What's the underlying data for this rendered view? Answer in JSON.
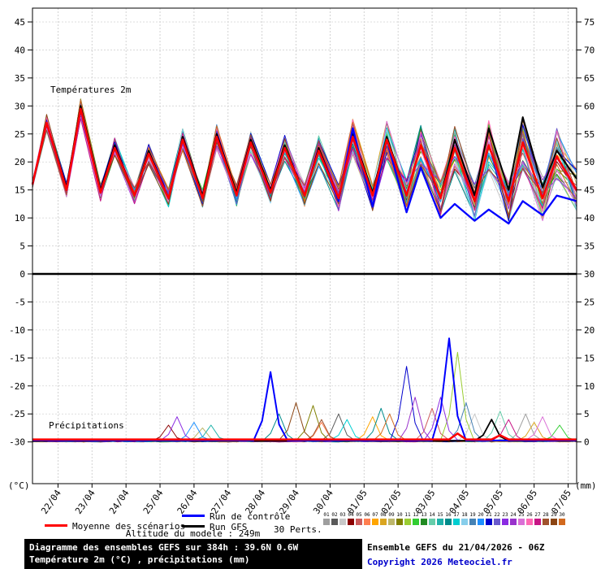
{
  "footer": {
    "altitude": "Altitude du modele : 249m",
    "title_line1": "Diagramme des ensembles GEFS sur 384h : 39.6N 0.6W",
    "title_line2": "Température 2m (°C) , précipitations (mm)",
    "run_info": "Ensemble GEFS du 21/04/2026 - 06Z",
    "copyright": "Copyright 2026 Meteociel.fr"
  },
  "legend": {
    "mean_label": "Moyenne des scénarios",
    "control_label": "Run de contrôle",
    "gfs_label": "Run GFS",
    "perts_label": "30 Perts."
  },
  "chart_data": {
    "type": "line",
    "title_temperature": "Températures 2m",
    "title_precipitation": "Précipitations",
    "x_axis": {
      "hours_span": 384,
      "label_start_hour": 18,
      "label_step_hours": 24,
      "dates": [
        "22/04",
        "23/04",
        "24/04",
        "25/04",
        "26/04",
        "27/04",
        "28/04",
        "29/04",
        "30/04",
        "01/05",
        "02/05",
        "03/05",
        "04/05",
        "05/05",
        "06/05",
        "07/05"
      ]
    },
    "left_axis": {
      "min": -30,
      "max": 45,
      "step": 5,
      "unit": "(°C)"
    },
    "right_axis": {
      "min": 0,
      "max": 75,
      "step": 5,
      "unit": "(mm)"
    },
    "series_colors": {
      "mean": "#ff0000",
      "control": "#0000ff",
      "gfs": "#000000"
    },
    "temperature": {
      "start_value": 16,
      "series": {
        "mean": {
          "daily_max": [
            27,
            29.5,
            22.5,
            21.5,
            24,
            24.5,
            23.5,
            22.5,
            22,
            24.5,
            24,
            23,
            22.5,
            23,
            23.5,
            21
          ],
          "daily_min": [
            15,
            14.5,
            14,
            13.5,
            13.5,
            14,
            14.5,
            14,
            13.5,
            14,
            14,
            13.5,
            13,
            13,
            13.5,
            15
          ]
        },
        "control": {
          "daily_max": [
            27,
            29.5,
            22.5,
            21.5,
            24,
            24.5,
            23.5,
            22.5,
            22,
            26,
            24,
            19,
            12.5,
            11.5,
            13,
            14
          ],
          "daily_min": [
            15,
            14.5,
            14,
            13.5,
            13.5,
            14,
            14.5,
            14,
            13,
            12,
            11,
            10,
            9.5,
            9,
            10.5,
            13
          ]
        },
        "gfs": {
          "daily_max": [
            27,
            30,
            23,
            22,
            24.5,
            25,
            24,
            23,
            22.5,
            25,
            24.5,
            23,
            24,
            26,
            28,
            22
          ],
          "daily_min": [
            15.5,
            15,
            14,
            13.5,
            14,
            14.5,
            15,
            14,
            13.5,
            14.5,
            14,
            13.5,
            14,
            15,
            15.5,
            17
          ]
        }
      },
      "member_spread_by_day": [
        1.5,
        1.8,
        1.8,
        2,
        2,
        2.2,
        2.2,
        2.4,
        2.8,
        3.2,
        3.5,
        3.8,
        4.2,
        4.5,
        5,
        5
      ]
    },
    "precipitation": {
      "baseline_mm": {
        "mean": 0.45,
        "control": 0.25,
        "gfs": 0.2
      },
      "events": [
        {
          "t": 96,
          "mm": 3,
          "series": "m3"
        },
        {
          "t": 100,
          "mm": 4.5,
          "series": "m22"
        },
        {
          "t": 112,
          "mm": 3.5,
          "series": "m19"
        },
        {
          "t": 120,
          "mm": 2.5,
          "series": "m8"
        },
        {
          "t": 126,
          "mm": 3,
          "series": "m14"
        },
        {
          "t": 170,
          "mm": 12.5,
          "series": "control"
        },
        {
          "t": 176,
          "mm": 5,
          "series": "m15"
        },
        {
          "t": 186,
          "mm": 7,
          "series": "m28"
        },
        {
          "t": 196,
          "mm": 6.5,
          "series": "m9"
        },
        {
          "t": 204,
          "mm": 4,
          "series": "m27"
        },
        {
          "t": 206,
          "mm": 3.5,
          "series": "m5"
        },
        {
          "t": 214,
          "mm": 5,
          "series": "m1"
        },
        {
          "t": 222,
          "mm": 4,
          "series": "m16"
        },
        {
          "t": 238,
          "mm": 4.5,
          "series": "m6"
        },
        {
          "t": 244,
          "mm": 6,
          "series": "m15"
        },
        {
          "t": 252,
          "mm": 5,
          "series": "m29"
        },
        {
          "t": 262,
          "mm": 13.5,
          "series": "m20"
        },
        {
          "t": 272,
          "mm": 8,
          "series": "m23"
        },
        {
          "t": 280,
          "mm": 6,
          "series": "m4"
        },
        {
          "t": 288,
          "mm": 8,
          "series": "m22"
        },
        {
          "t": 292,
          "mm": 18.5,
          "series": "control"
        },
        {
          "t": 300,
          "mm": 1.5,
          "series": "mean"
        },
        {
          "t": 302,
          "mm": 16,
          "series": "m10"
        },
        {
          "t": 308,
          "mm": 7,
          "series": "m18"
        },
        {
          "t": 314,
          "mm": 5,
          "series": "m2"
        },
        {
          "t": 322,
          "mm": 4,
          "series": "gfs"
        },
        {
          "t": 330,
          "mm": 5.5,
          "series": "m13"
        },
        {
          "t": 332,
          "mm": 1.2,
          "series": "mean"
        },
        {
          "t": 338,
          "mm": 4,
          "series": "m26"
        },
        {
          "t": 346,
          "mm": 5,
          "series": "m0"
        },
        {
          "t": 354,
          "mm": 3.5,
          "series": "m7"
        },
        {
          "t": 362,
          "mm": 4.5,
          "series": "m24"
        },
        {
          "t": 370,
          "mm": 3,
          "series": "m11"
        }
      ]
    },
    "member_ids": [
      "01",
      "02",
      "03",
      "04",
      "05",
      "06",
      "07",
      "08",
      "09",
      "10",
      "11",
      "12",
      "13",
      "14",
      "15",
      "16",
      "17",
      "18",
      "19",
      "20",
      "21",
      "22",
      "23",
      "24",
      "25",
      "26",
      "27",
      "28",
      "29",
      "30"
    ],
    "member_colors": [
      "#9e9e9e",
      "#5a5a5a",
      "#c8c8c8",
      "#8b0000",
      "#cd5c5c",
      "#ff7f50",
      "#ffa500",
      "#daa520",
      "#bdb76b",
      "#808000",
      "#9acd32",
      "#32cd32",
      "#228b22",
      "#66cdaa",
      "#20b2aa",
      "#008b8b",
      "#00ced1",
      "#87ceeb",
      "#4682b4",
      "#1e90ff",
      "#0000cd",
      "#6a5acd",
      "#8a2be2",
      "#9932cc",
      "#da70d6",
      "#ff69b4",
      "#c71585",
      "#a0522d",
      "#8b4513",
      "#d2691e"
    ]
  }
}
